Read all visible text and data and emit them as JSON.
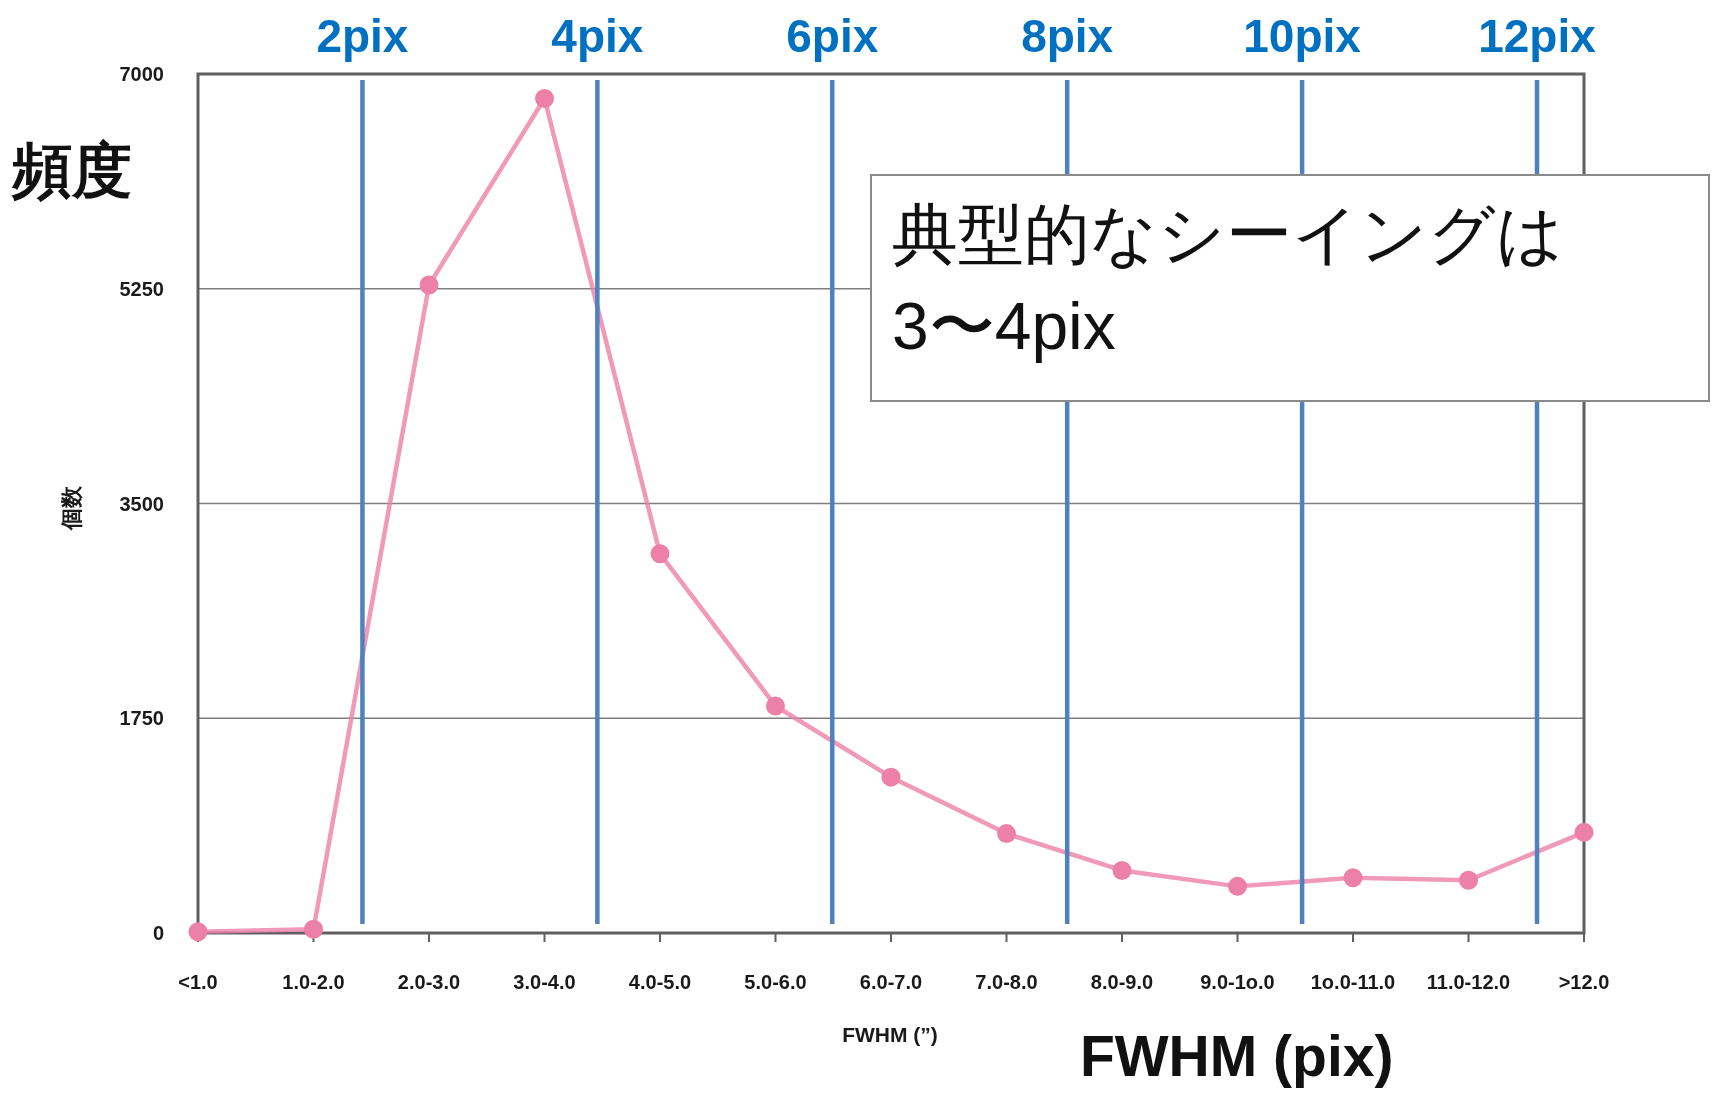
{
  "chart_data": {
    "type": "line",
    "categories": [
      "<1.0",
      "1.0-2.0",
      "2.0-3.0",
      "3.0-4.0",
      "4.0-5.0",
      "5.0-6.0",
      "6.0-7.0",
      "7.0-8.0",
      "8.0-9.0",
      "9.0-1o.0",
      "1o.0-11.0",
      "11.0-12.0",
      ">12.0"
    ],
    "series": [
      {
        "color": "#ec80a7",
        "values": [
          10,
          30,
          5280,
          6800,
          3090,
          1850,
          1270,
          810,
          510,
          380,
          450,
          430,
          820
        ]
      }
    ],
    "ylim": [
      0,
      7000
    ],
    "yticks": [
      0,
      1750,
      3500,
      5250,
      7000
    ],
    "xlabel": "FWHM (”)",
    "ylabel": "個数",
    "grid": "y",
    "marker": "circle",
    "x2lim": [
      0.6,
      12.4
    ],
    "x2ticks": [
      {
        "value": 2,
        "label": "2pix"
      },
      {
        "value": 4,
        "label": "4pix"
      },
      {
        "value": 6,
        "label": "6pix"
      },
      {
        "value": 8,
        "label": "8pix"
      },
      {
        "value": 10,
        "label": "10pix"
      },
      {
        "value": 12,
        "label": "12pix"
      }
    ],
    "ref_lines": [
      {
        "axis": "x2",
        "value": 2,
        "color": "#4f81bd"
      },
      {
        "axis": "x2",
        "value": 4,
        "color": "#4f81bd"
      },
      {
        "axis": "x2",
        "value": 6,
        "color": "#4f81bd"
      },
      {
        "axis": "x2",
        "value": 8,
        "color": "#4f81bd"
      },
      {
        "axis": "x2",
        "value": 10,
        "color": "#4f81bd"
      },
      {
        "axis": "x2",
        "value": 12,
        "color": "#4f81bd"
      }
    ],
    "annotations": [
      "頻度",
      "典型的なシーイングは3〜4pix",
      "FWHM (pix)"
    ]
  }
}
